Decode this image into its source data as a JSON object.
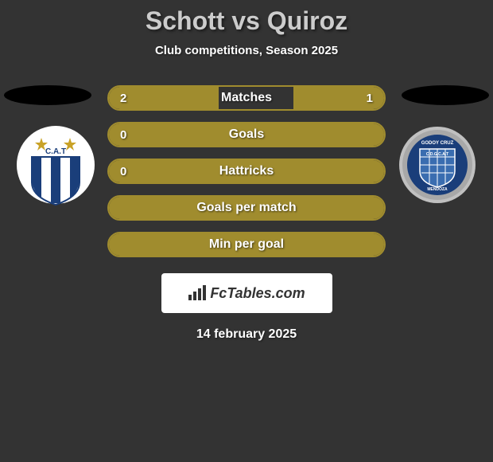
{
  "header": {
    "title": "Schott vs Quiroz",
    "subtitle": "Club competitions, Season 2025"
  },
  "stats": [
    {
      "label": "Matches",
      "left_value": "2",
      "right_value": "1",
      "left_fill_pct": 40,
      "right_fill_pct": 33,
      "bar_color": "#a08c2e"
    },
    {
      "label": "Goals",
      "left_value": "0",
      "right_value": "",
      "full_fill": true,
      "bar_color": "#a08c2e"
    },
    {
      "label": "Hattricks",
      "left_value": "0",
      "right_value": "",
      "full_fill": true,
      "bar_color": "#a08c2e"
    },
    {
      "label": "Goals per match",
      "left_value": "",
      "right_value": "",
      "full_fill": true,
      "bar_color": "#a08c2e"
    },
    {
      "label": "Min per goal",
      "left_value": "",
      "right_value": "",
      "full_fill": true,
      "bar_color": "#a08c2e"
    }
  ],
  "brand": {
    "text": "FcTables.com"
  },
  "date": "14 february 2025",
  "crests": {
    "left": {
      "type": "shield",
      "bg": "#ffffff",
      "stripes": "#1a3e7a",
      "stars": "#c9a227"
    },
    "right": {
      "type": "round",
      "outer": "#c0c0c0",
      "inner": "#3a6db0",
      "band": "#1a3e7a"
    }
  },
  "styling": {
    "bg": "#333333",
    "title_color": "#cccccc",
    "text_color": "#ffffff",
    "bar_border": "#a08c2e",
    "shadow_color": "#000000",
    "title_fontsize": 32,
    "subtitle_fontsize": 15,
    "stat_label_fontsize": 16
  }
}
